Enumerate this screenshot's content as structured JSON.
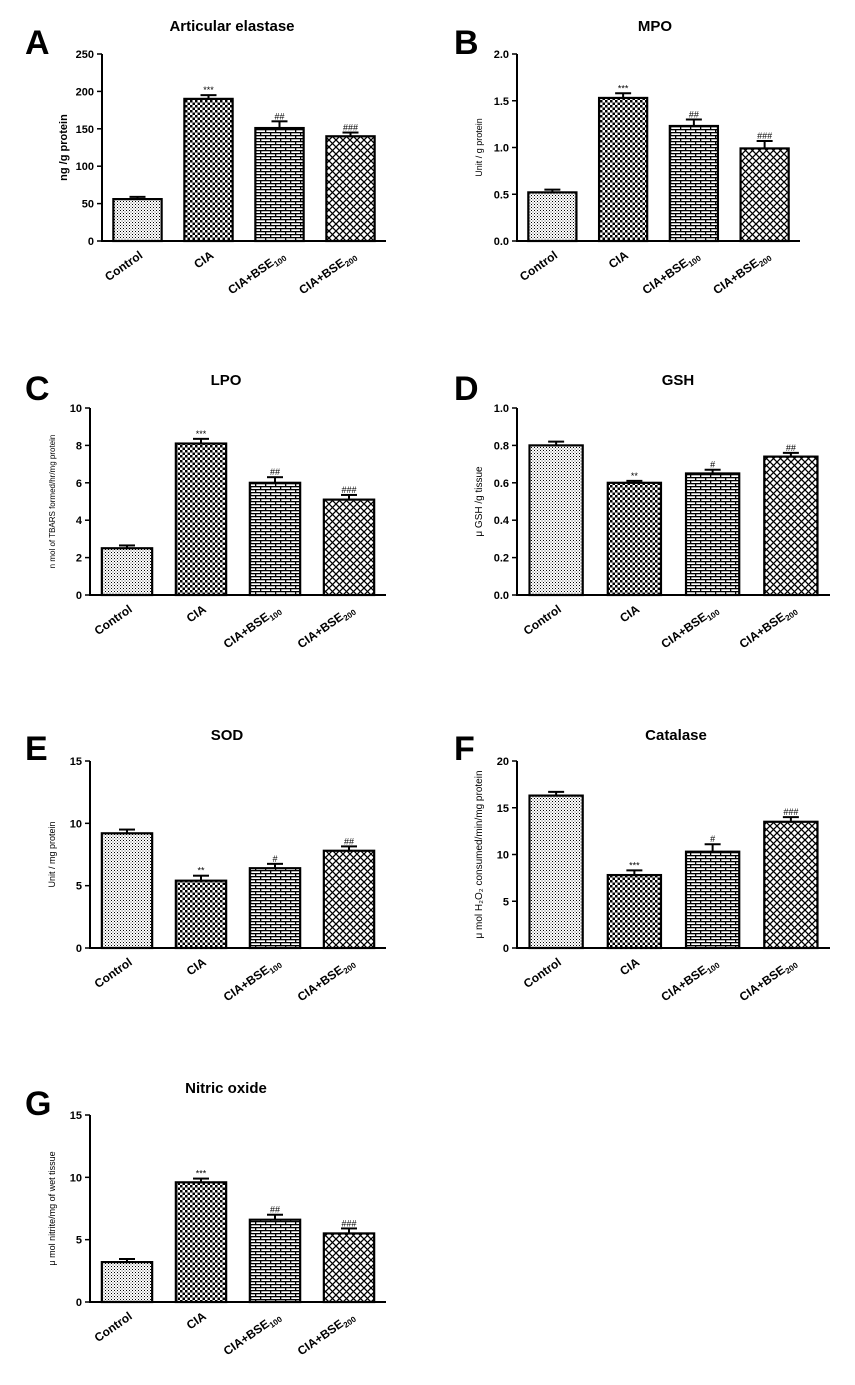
{
  "chart_data": [
    {
      "type": "bar",
      "panel": "A",
      "title": "Articular elastase",
      "ylabel": "ng /g protein",
      "ylabel_size": 11,
      "ylabel_bold": true,
      "ylim": [
        0,
        250
      ],
      "yticks": [
        "0",
        "50",
        "100",
        "150",
        "200",
        "250"
      ],
      "ytick_values": [
        0,
        50,
        100,
        150,
        200,
        250
      ],
      "categories": [
        {
          "main": "Control",
          "sub": ""
        },
        {
          "main": "CIA",
          "sub": ""
        },
        {
          "main": "CIA+BSE",
          "sub": "100"
        },
        {
          "main": "CIA+BSE",
          "sub": "200"
        }
      ],
      "values": [
        56,
        190,
        151,
        140
      ],
      "errors": [
        3,
        5,
        9,
        5
      ],
      "significance": [
        "",
        "***",
        "##",
        "###"
      ]
    },
    {
      "type": "bar",
      "panel": "B",
      "title": "MPO",
      "ylabel": "Unit / g protein",
      "ylabel_size": 9,
      "ylabel_bold": false,
      "ylim": [
        0,
        2.0
      ],
      "yticks": [
        "0.0",
        "0.5",
        "1.0",
        "1.5",
        "2.0"
      ],
      "ytick_values": [
        0,
        0.5,
        1.0,
        1.5,
        2.0
      ],
      "categories": [
        {
          "main": "Control",
          "sub": ""
        },
        {
          "main": "CIA",
          "sub": ""
        },
        {
          "main": "CIA+BSE",
          "sub": "100"
        },
        {
          "main": "CIA+BSE",
          "sub": "200"
        }
      ],
      "values": [
        0.52,
        1.53,
        1.23,
        0.99
      ],
      "errors": [
        0.03,
        0.05,
        0.07,
        0.08
      ],
      "significance": [
        "",
        "***",
        "##",
        "###"
      ]
    },
    {
      "type": "bar",
      "panel": "C",
      "title": "LPO",
      "ylabel": "n mol of TBARS formed/hr/mg protein",
      "ylabel_size": 8,
      "ylabel_bold": false,
      "ylim": [
        0,
        10
      ],
      "yticks": [
        "0",
        "2",
        "4",
        "6",
        "8",
        "10"
      ],
      "ytick_values": [
        0,
        2,
        4,
        6,
        8,
        10
      ],
      "categories": [
        {
          "main": "Control",
          "sub": ""
        },
        {
          "main": "CIA",
          "sub": ""
        },
        {
          "main": "CIA+BSE",
          "sub": "100"
        },
        {
          "main": "CIA+BSE",
          "sub": "200"
        }
      ],
      "values": [
        2.5,
        8.1,
        6.0,
        5.1
      ],
      "errors": [
        0.15,
        0.25,
        0.3,
        0.25
      ],
      "significance": [
        "",
        "***",
        "##",
        "###"
      ]
    },
    {
      "type": "bar",
      "panel": "D",
      "title": "GSH",
      "ylabel": "μ GSH /g tissue",
      "ylabel_size": 10,
      "ylabel_bold": false,
      "ylim": [
        0,
        1.0
      ],
      "yticks": [
        "0.0",
        "0.2",
        "0.4",
        "0.6",
        "0.8",
        "1.0"
      ],
      "ytick_values": [
        0,
        0.2,
        0.4,
        0.6,
        0.8,
        1.0
      ],
      "categories": [
        {
          "main": "Control",
          "sub": ""
        },
        {
          "main": "CIA",
          "sub": ""
        },
        {
          "main": "CIA+BSE",
          "sub": "100"
        },
        {
          "main": "CIA+BSE",
          "sub": "200"
        }
      ],
      "values": [
        0.8,
        0.6,
        0.65,
        0.74
      ],
      "errors": [
        0.02,
        0.01,
        0.02,
        0.02
      ],
      "significance": [
        "",
        "**",
        "#",
        "##"
      ]
    },
    {
      "type": "bar",
      "panel": "E",
      "title": "SOD",
      "ylabel": "Unit / mg protein",
      "ylabel_size": 9,
      "ylabel_bold": false,
      "ylim": [
        0,
        15
      ],
      "yticks": [
        "0",
        "5",
        "10",
        "15"
      ],
      "ytick_values": [
        0,
        5,
        10,
        15
      ],
      "categories": [
        {
          "main": "Control",
          "sub": ""
        },
        {
          "main": "CIA",
          "sub": ""
        },
        {
          "main": "CIA+BSE",
          "sub": "100"
        },
        {
          "main": "CIA+BSE",
          "sub": "200"
        }
      ],
      "values": [
        9.2,
        5.4,
        6.4,
        7.8
      ],
      "errors": [
        0.3,
        0.4,
        0.35,
        0.35
      ],
      "significance": [
        "",
        "**",
        "#",
        "##"
      ]
    },
    {
      "type": "bar",
      "panel": "F",
      "title": "Catalase",
      "ylabel": "μ mol H₂O₂ consumed/min/mg protein",
      "ylabel_size": 10,
      "ylabel_bold": false,
      "ylim": [
        0,
        20
      ],
      "yticks": [
        "0",
        "5",
        "10",
        "15",
        "20"
      ],
      "ytick_values": [
        0,
        5,
        10,
        15,
        20
      ],
      "categories": [
        {
          "main": "Control",
          "sub": ""
        },
        {
          "main": "CIA",
          "sub": ""
        },
        {
          "main": "CIA+BSE",
          "sub": "100"
        },
        {
          "main": "CIA+BSE",
          "sub": "200"
        }
      ],
      "values": [
        16.3,
        7.8,
        10.3,
        13.5
      ],
      "errors": [
        0.4,
        0.5,
        0.8,
        0.5
      ],
      "significance": [
        "",
        "***",
        "#",
        "###"
      ]
    },
    {
      "type": "bar",
      "panel": "G",
      "title": "Nitric oxide",
      "ylabel": "μ mol nitrite/mg of wet tissue",
      "ylabel_size": 9,
      "ylabel_bold": false,
      "ylim": [
        0,
        15
      ],
      "yticks": [
        "0",
        "5",
        "10",
        "15"
      ],
      "ytick_values": [
        0,
        5,
        10,
        15
      ],
      "categories": [
        {
          "main": "Control",
          "sub": ""
        },
        {
          "main": "CIA",
          "sub": ""
        },
        {
          "main": "CIA+BSE",
          "sub": "100"
        },
        {
          "main": "CIA+BSE",
          "sub": "200"
        }
      ],
      "values": [
        3.2,
        9.6,
        6.6,
        5.5
      ],
      "errors": [
        0.25,
        0.3,
        0.4,
        0.4
      ],
      "significance": [
        "",
        "***",
        "##",
        "###"
      ]
    }
  ]
}
